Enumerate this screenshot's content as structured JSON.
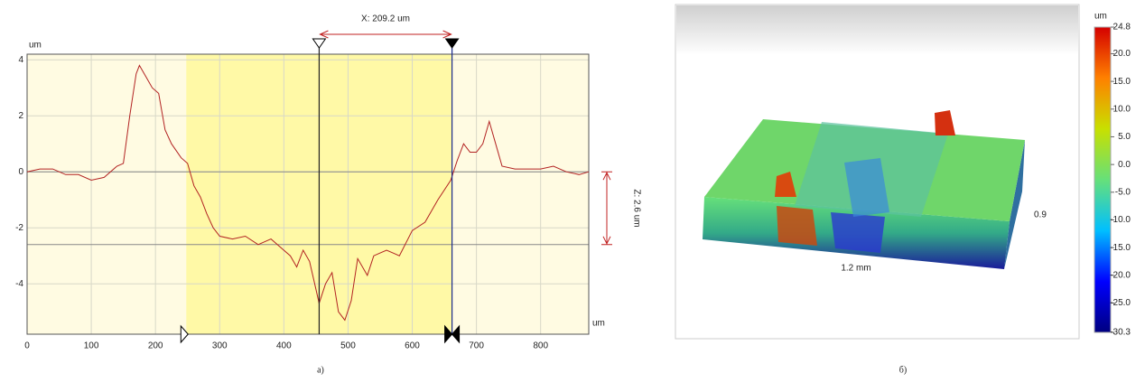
{
  "chart_data": [
    {
      "type": "line",
      "caption": "а)",
      "x_unit": "um",
      "y_unit": "um",
      "measure_x_label": "X: 209.2 um",
      "measure_z_label": "Z: 2.6 um",
      "x": [
        0,
        20,
        40,
        60,
        80,
        100,
        120,
        140,
        150,
        160,
        170,
        175,
        185,
        195,
        205,
        215,
        225,
        240,
        250,
        260,
        270,
        280,
        290,
        300,
        320,
        340,
        360,
        380,
        400,
        410,
        420,
        430,
        440,
        450,
        455,
        465,
        475,
        485,
        495,
        505,
        515,
        530,
        540,
        550,
        560,
        570,
        580,
        600,
        620,
        640,
        660,
        670,
        680,
        690,
        700,
        710,
        720,
        730,
        740,
        760,
        780,
        800,
        820,
        840,
        860,
        875
      ],
      "series": [
        {
          "color": "#b22222",
          "values": [
            0,
            0.1,
            0.1,
            -0.1,
            -0.1,
            -0.3,
            -0.2,
            0.2,
            0.3,
            2.0,
            3.5,
            3.8,
            3.4,
            3.0,
            2.8,
            1.5,
            1.0,
            0.5,
            0.3,
            -0.5,
            -0.9,
            -1.5,
            -2.0,
            -2.3,
            -2.4,
            -2.3,
            -2.6,
            -2.4,
            -2.8,
            -3.0,
            -3.4,
            -2.8,
            -3.2,
            -4.2,
            -4.7,
            -4.0,
            -3.6,
            -5.0,
            -5.3,
            -4.6,
            -3.1,
            -3.7,
            -3.0,
            -2.9,
            -2.8,
            -2.9,
            -3.0,
            -2.1,
            -1.8,
            -1.0,
            -0.3,
            0.4,
            1.0,
            0.7,
            0.7,
            1.0,
            1.8,
            1.0,
            0.2,
            0.1,
            0.1,
            0.1,
            0.2,
            0,
            -0.1,
            0
          ]
        }
      ],
      "xlim": [
        0,
        875
      ],
      "ylim": [
        -5.8,
        4.2
      ],
      "xticks": [
        0,
        100,
        200,
        300,
        400,
        500,
        600,
        700,
        800
      ],
      "yticks": [
        -4,
        -2,
        0,
        2,
        4
      ],
      "grid": true,
      "highlight_x": [
        248,
        662
      ],
      "cursor_x": [
        455,
        662
      ],
      "cursor_y": [
        0,
        -2.6
      ]
    },
    {
      "type": "surface3d",
      "caption": "б)",
      "colorbar_unit": "um",
      "length_label": "1.2 mm",
      "width_label": "0.9",
      "clim": [
        -30.3,
        24.8
      ],
      "colorbar_ticks": [
        24.8,
        {
          "value": 20,
          "label": "20.0"
        },
        {
          "value": 15,
          "label": "15.0"
        },
        {
          "value": 10,
          "label": "10.0"
        },
        {
          "value": 5,
          "label": "5.0"
        },
        {
          "value": 0,
          "label": "0.0"
        },
        {
          "value": -5,
          "label": "-5.0"
        },
        {
          "value": -10,
          "label": "-10.0"
        },
        {
          "value": -15,
          "label": "-15.0"
        },
        {
          "value": -20,
          "label": "-20.0"
        },
        {
          "value": -25,
          "label": "-25.0"
        },
        -30.3
      ],
      "colormap": [
        "#00007f",
        "#0000ff",
        "#00bfff",
        "#66e07a",
        "#c8e000",
        "#ff8000",
        "#d40000"
      ]
    }
  ]
}
